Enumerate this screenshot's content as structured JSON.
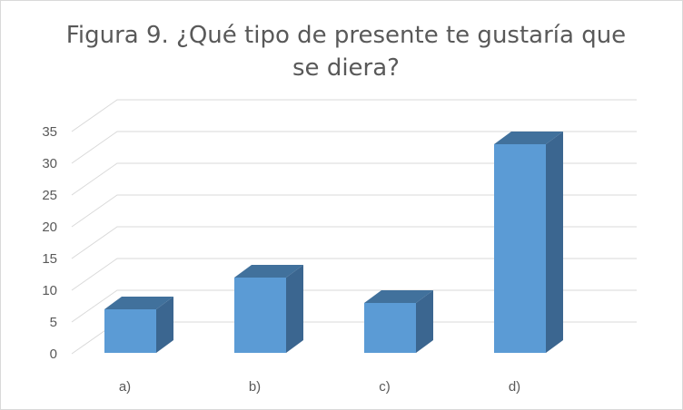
{
  "chart_data": {
    "type": "bar",
    "title": "Figura 9. ¿Qué tipo de presente te gustaría que se diera?",
    "categories": [
      "a)",
      "b)",
      "c)",
      "d)"
    ],
    "values": [
      7,
      12,
      8,
      33
    ],
    "xlabel": "",
    "ylabel": "",
    "ylim": [
      0,
      35
    ],
    "yticks": [
      0,
      5,
      10,
      15,
      20,
      25,
      30,
      35
    ],
    "grid": true,
    "legend": "none",
    "colors": {
      "bar_front": "#5b9bd5",
      "bar_top": "#41719c",
      "bar_side": "#3b6690",
      "grid": "#d9d9d9",
      "text": "#595959"
    }
  }
}
